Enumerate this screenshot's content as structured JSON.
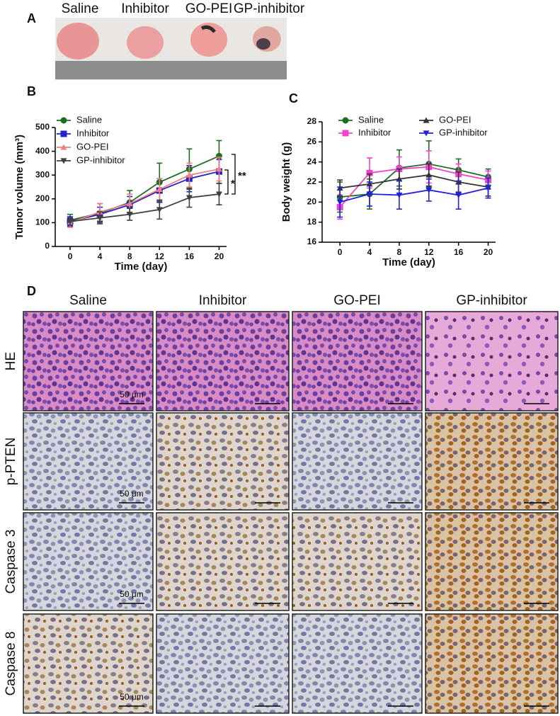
{
  "panel_a": {
    "label": "A",
    "groups": [
      "Saline",
      "Inhibitor",
      "GO-PEI",
      "GP-inhibitor"
    ]
  },
  "chart_data": [
    {
      "panel_label": "B",
      "type": "line",
      "x_label": "Time (day)",
      "y_label": "Tumor volume (mm³)",
      "x": [
        0,
        4,
        8,
        12,
        16,
        20
      ],
      "xlim": [
        -2,
        21
      ],
      "xticks": [
        0,
        4,
        8,
        12,
        16,
        20
      ],
      "ylim": [
        0,
        500
      ],
      "yticks": [
        0,
        100,
        200,
        300,
        400,
        500
      ],
      "series": [
        {
          "name": "Saline",
          "color": "#1e6e1e",
          "marker": "circle",
          "values": [
            110,
            140,
            185,
            270,
            325,
            380
          ],
          "errors": [
            25,
            40,
            50,
            80,
            85,
            65
          ]
        },
        {
          "name": "Inhibitor",
          "color": "#2222cc",
          "marker": "square",
          "values": [
            105,
            135,
            175,
            235,
            285,
            315
          ],
          "errors": [
            20,
            30,
            35,
            50,
            55,
            50
          ]
        },
        {
          "name": "GO-PEI",
          "color": "#f08080",
          "marker": "triangle-up",
          "values": [
            100,
            145,
            180,
            240,
            300,
            325
          ],
          "errors": [
            20,
            35,
            40,
            45,
            50,
            50
          ]
        },
        {
          "name": "GP-inhibitor",
          "color": "#404040",
          "marker": "triangle-down",
          "values": [
            105,
            120,
            135,
            155,
            205,
            220
          ],
          "errors": [
            15,
            25,
            25,
            40,
            40,
            45
          ]
        }
      ],
      "annotations": [
        "*",
        "**"
      ]
    },
    {
      "panel_label": "C",
      "type": "line",
      "x_label": "Time (day)",
      "y_label": "Body weight (g)",
      "x": [
        0,
        4,
        8,
        12,
        16,
        20
      ],
      "xlim": [
        -2.4,
        21
      ],
      "xticks": [
        0,
        4,
        8,
        12,
        16,
        20
      ],
      "ylim": [
        16,
        28
      ],
      "yticks": [
        16,
        18,
        20,
        22,
        24,
        26,
        28
      ],
      "series": [
        {
          "name": "Saline",
          "color": "#1e6e1e",
          "marker": "circle",
          "values": [
            20.5,
            20.8,
            23.4,
            23.8,
            23.2,
            22.5
          ],
          "errors": [
            1.5,
            1.5,
            1.8,
            2.3,
            1.1,
            0.8
          ]
        },
        {
          "name": "Inhibitor",
          "color": "#ee44cc",
          "marker": "square",
          "values": [
            19.5,
            22.9,
            23.3,
            23.5,
            22.8,
            22.2
          ],
          "errors": [
            1.2,
            1.5,
            1.2,
            1.6,
            1.0,
            0.9
          ]
        },
        {
          "name": "GO-PEI",
          "color": "#333333",
          "marker": "triangle-up",
          "values": [
            21.4,
            21.8,
            22.3,
            22.7,
            22.0,
            21.5
          ],
          "errors": [
            0.8,
            1.0,
            1.0,
            1.1,
            1.0,
            0.9
          ]
        },
        {
          "name": "GP-inhibitor",
          "color": "#2222dd",
          "marker": "triangle-down",
          "values": [
            20.0,
            20.8,
            20.7,
            21.2,
            20.7,
            21.4
          ],
          "errors": [
            1.5,
            1.2,
            1.4,
            1.1,
            1.4,
            1.0
          ]
        }
      ]
    }
  ],
  "panel_d": {
    "label": "D",
    "columns": [
      "Saline",
      "Inhibitor",
      "GO-PEI",
      "GP-inhibitor"
    ],
    "rows": [
      "HE",
      "p-PTEN",
      "Caspase 3",
      "Caspase 8"
    ],
    "scale_bar": "50 μm"
  }
}
